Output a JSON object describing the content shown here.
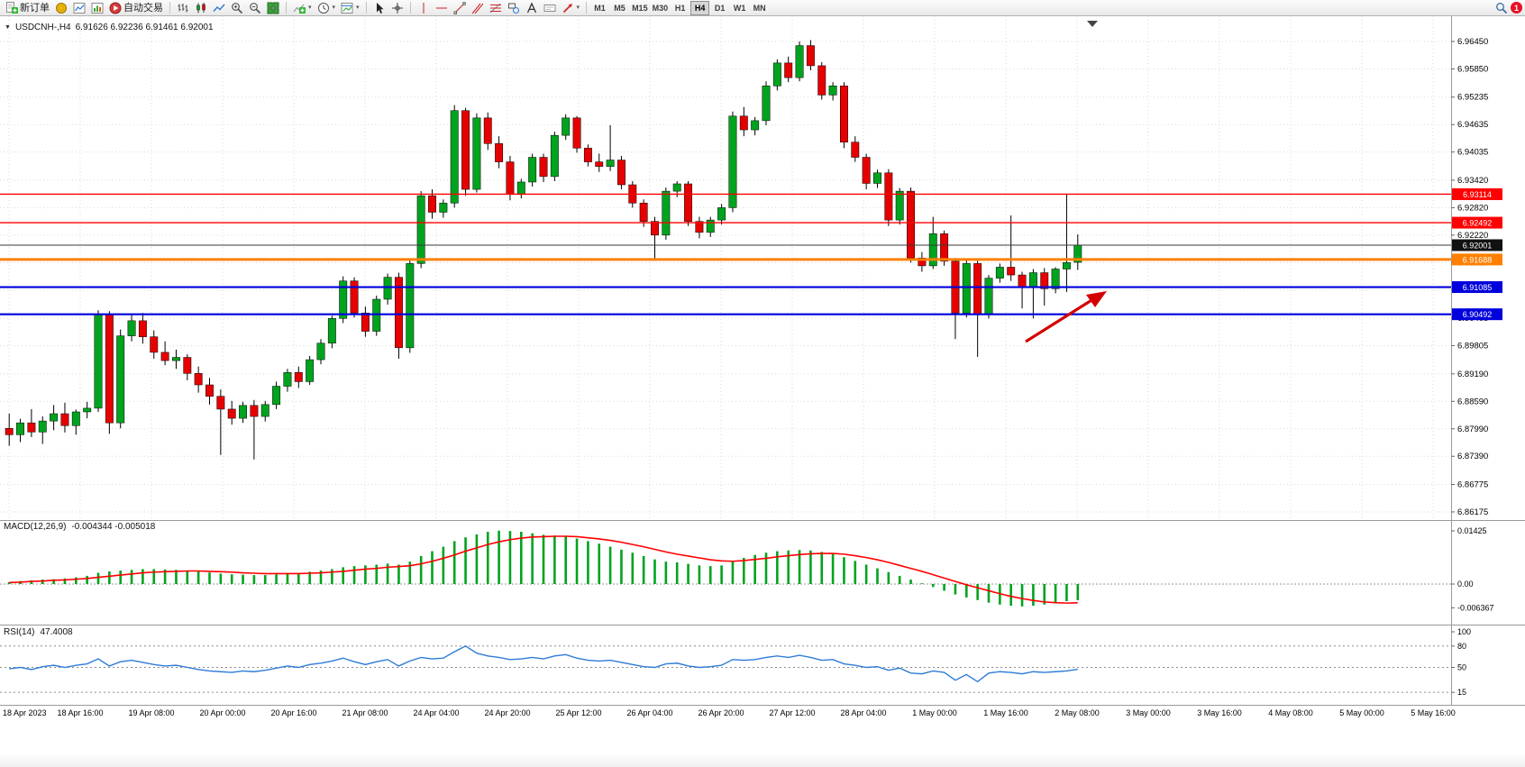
{
  "icons": {
    "caret_down": "▾",
    "chart_menu": "▼"
  },
  "toolbar": {
    "new_order_label": "新订单",
    "auto_trading_label": "自动交易",
    "timeframes": [
      "M1",
      "M5",
      "M15",
      "M30",
      "H1",
      "H4",
      "D1",
      "W1",
      "MN"
    ],
    "active_timeframe": "H4",
    "notification_count": "1"
  },
  "chart": {
    "symbol_period": "USDCNH-,H4",
    "ohlc": "6.91626 6.92236 6.91461 6.92001"
  },
  "chart_data": [
    {
      "type": "candlestick",
      "symbol": "USDCNH-",
      "period": "H4",
      "title": "USDCNH-,H4",
      "last_ohlc": {
        "open": 6.91626,
        "high": 6.92236,
        "low": 6.91461,
        "close": 6.92001
      },
      "ylim": [
        6.86175,
        6.9645
      ],
      "colors": {
        "up": "#00A31E",
        "down": "#E60000",
        "wick": "#000000"
      },
      "price_axis_ticks": [
        "6.96450",
        "6.95850",
        "6.95235",
        "6.94635",
        "6.94035",
        "6.93420",
        "6.92820",
        "6.92220",
        "6.91620",
        "6.91020",
        "6.90405",
        "6.89805",
        "6.89190",
        "6.88590",
        "6.87990",
        "6.87390",
        "6.86775",
        "6.86175"
      ],
      "hlines": [
        {
          "price": 6.93114,
          "label": "6.93114",
          "color": "#FF0000",
          "width": 1.4
        },
        {
          "price": 6.92492,
          "label": "6.92492",
          "color": "#FF0000",
          "width": 1.4
        },
        {
          "price": 6.92001,
          "label": "6.92001",
          "color": "#3A3A3A",
          "width": 1,
          "box": "#111111",
          "role": "bid"
        },
        {
          "price": 6.91688,
          "label": "6.91688",
          "color": "#FF8000",
          "width": 3
        },
        {
          "price": 6.91085,
          "label": "6.91085",
          "color": "#0000DD",
          "width": 2.2
        },
        {
          "price": 6.90492,
          "label": "6.90492",
          "color": "#0000DD",
          "width": 2.2
        }
      ],
      "arrow": {
        "color": "#D40000"
      },
      "time_axis_labels": [
        "18 Apr 2023",
        "18 Apr 16:00",
        "19 Apr 08:00",
        "20 Apr 00:00",
        "20 Apr 16:00",
        "21 Apr 08:00",
        "24 Apr 04:00",
        "24 Apr 20:00",
        "25 Apr 12:00",
        "26 Apr 04:00",
        "26 Apr 20:00",
        "27 Apr 12:00",
        "28 Apr 04:00",
        "1 May 00:00",
        "1 May 16:00",
        "2 May 08:00",
        "3 May 00:00",
        "3 May 16:00",
        "4 May 08:00",
        "5 May 00:00",
        "5 May 16:00"
      ],
      "candles": [
        [
          6.88,
          6.8832,
          6.8762,
          6.8786
        ],
        [
          6.8786,
          6.8821,
          6.877,
          6.8812
        ],
        [
          6.8812,
          6.8842,
          6.8781,
          6.8792
        ],
        [
          6.8792,
          6.8826,
          6.8766,
          6.8816
        ],
        [
          6.8816,
          6.8851,
          6.8796,
          6.8832
        ],
        [
          6.8832,
          6.8856,
          6.8791,
          6.8806
        ],
        [
          6.8806,
          6.8841,
          6.8786,
          6.8836
        ],
        [
          6.8836,
          6.8858,
          6.8822,
          6.8844
        ],
        [
          6.8844,
          6.9058,
          6.8836,
          6.9048
        ],
        [
          6.9048,
          6.9056,
          6.8788,
          6.8812
        ],
        [
          6.8812,
          6.9016,
          6.88,
          6.9002
        ],
        [
          6.9002,
          6.9048,
          6.899,
          6.9035
        ],
        [
          6.9035,
          6.9052,
          6.8985,
          6.9
        ],
        [
          6.9,
          6.9014,
          6.8952,
          6.8966
        ],
        [
          6.8966,
          6.899,
          6.8938,
          6.8948
        ],
        [
          6.8948,
          6.8972,
          6.893,
          6.8955
        ],
        [
          6.8955,
          6.8962,
          6.8905,
          6.892
        ],
        [
          6.892,
          6.8935,
          6.8878,
          6.8895
        ],
        [
          6.8895,
          6.891,
          6.8852,
          6.887
        ],
        [
          6.887,
          6.8885,
          6.8742,
          6.8842
        ],
        [
          6.8842,
          6.886,
          6.8808,
          6.8822
        ],
        [
          6.8822,
          6.8858,
          6.8812,
          6.885
        ],
        [
          6.885,
          6.8862,
          6.8732,
          6.8826
        ],
        [
          6.8826,
          6.886,
          6.8815,
          6.8852
        ],
        [
          6.8852,
          6.8902,
          6.8842,
          6.8892
        ],
        [
          6.8892,
          6.893,
          6.888,
          6.8922
        ],
        [
          6.8922,
          6.8935,
          6.8888,
          6.8902
        ],
        [
          6.8902,
          6.8958,
          6.8895,
          6.895
        ],
        [
          6.895,
          6.8995,
          6.894,
          6.8986
        ],
        [
          6.8986,
          6.9046,
          6.8975,
          6.904
        ],
        [
          6.904,
          6.9132,
          6.903,
          6.9122
        ],
        [
          6.9122,
          6.913,
          6.9042,
          6.9052
        ],
        [
          6.9052,
          6.9066,
          6.9,
          6.9012
        ],
        [
          6.9012,
          6.909,
          6.9002,
          6.9082
        ],
        [
          6.9082,
          6.9138,
          6.907,
          6.913
        ],
        [
          6.913,
          6.914,
          6.8952,
          6.8976
        ],
        [
          6.8976,
          6.9168,
          6.8965,
          6.916
        ],
        [
          6.916,
          6.9318,
          6.915,
          6.9308
        ],
        [
          6.9308,
          6.9322,
          6.9258,
          6.9272
        ],
        [
          6.9272,
          6.93,
          6.926,
          6.9292
        ],
        [
          6.9292,
          6.9506,
          6.9282,
          6.9494
        ],
        [
          6.9494,
          6.95,
          6.9308,
          6.9322
        ],
        [
          6.9322,
          6.9488,
          6.9315,
          6.9478
        ],
        [
          6.9478,
          6.949,
          6.9408,
          6.9422
        ],
        [
          6.9422,
          6.9438,
          6.9368,
          6.9382
        ],
        [
          6.9382,
          6.9395,
          6.9298,
          6.9312
        ],
        [
          6.9312,
          6.9345,
          6.9302,
          6.9338
        ],
        [
          6.9338,
          6.94,
          6.9328,
          6.9392
        ],
        [
          6.9392,
          6.94,
          6.9338,
          6.935
        ],
        [
          6.935,
          6.9448,
          6.934,
          6.944
        ],
        [
          6.944,
          6.9486,
          6.943,
          6.9478
        ],
        [
          6.9478,
          6.9482,
          6.9402,
          6.9412
        ],
        [
          6.9412,
          6.942,
          6.9372,
          6.9382
        ],
        [
          6.9382,
          6.94,
          6.936,
          6.9372
        ],
        [
          6.9372,
          6.9462,
          6.9362,
          6.9386
        ],
        [
          6.9386,
          6.9395,
          6.9322,
          6.9332
        ],
        [
          6.9332,
          6.934,
          6.9282,
          6.9292
        ],
        [
          6.9292,
          6.93,
          6.924,
          6.9252
        ],
        [
          6.9252,
          6.9262,
          6.9166,
          6.9222
        ],
        [
          6.9222,
          6.9326,
          6.9212,
          6.9318
        ],
        [
          6.9318,
          6.934,
          6.9305,
          6.9334
        ],
        [
          6.9334,
          6.934,
          6.9242,
          6.9252
        ],
        [
          6.9252,
          6.9262,
          6.9215,
          6.9228
        ],
        [
          6.9228,
          6.9262,
          6.9218,
          6.9255
        ],
        [
          6.9255,
          6.929,
          6.9245,
          6.9282
        ],
        [
          6.9282,
          6.9492,
          6.9272,
          6.9482
        ],
        [
          6.9482,
          6.9502,
          6.9438,
          6.9452
        ],
        [
          6.9452,
          6.948,
          6.944,
          6.9472
        ],
        [
          6.9472,
          6.9558,
          6.9462,
          6.9548
        ],
        [
          6.9548,
          6.9606,
          6.9538,
          6.9598
        ],
        [
          6.9598,
          6.9612,
          6.9556,
          6.9566
        ],
        [
          6.9566,
          6.9645,
          6.9558,
          6.9636
        ],
        [
          6.9636,
          6.9648,
          6.9582,
          6.9592
        ],
        [
          6.9592,
          6.96,
          6.9518,
          6.9528
        ],
        [
          6.9528,
          6.9556,
          6.9516,
          6.9548
        ],
        [
          6.9548,
          6.9556,
          6.9412,
          6.9425
        ],
        [
          6.9425,
          6.9438,
          6.9382,
          6.9392
        ],
        [
          6.9392,
          6.94,
          6.9322,
          6.9335
        ],
        [
          6.9335,
          6.9365,
          6.9325,
          6.9358
        ],
        [
          6.9358,
          6.9366,
          6.9242,
          6.9255
        ],
        [
          6.9255,
          6.9325,
          6.9245,
          6.9318
        ],
        [
          6.9318,
          6.9326,
          6.9162,
          6.9172
        ],
        [
          6.9172,
          6.9185,
          6.9142,
          6.9155
        ],
        [
          6.9155,
          6.9262,
          6.9148,
          6.9225
        ],
        [
          6.9225,
          6.9232,
          6.9155,
          6.9165
        ],
        [
          6.9165,
          6.9172,
          6.8995,
          6.9052
        ],
        [
          6.9052,
          6.9168,
          6.9042,
          6.916
        ],
        [
          6.916,
          6.9166,
          6.8956,
          6.9048
        ],
        [
          6.9048,
          6.9135,
          6.904,
          6.9128
        ],
        [
          6.9128,
          6.916,
          6.9118,
          6.9152
        ],
        [
          6.9152,
          6.9265,
          6.9122,
          6.9135
        ],
        [
          6.9135,
          6.9142,
          6.9062,
          6.9108
        ],
        [
          6.9108,
          6.9148,
          6.904,
          6.914
        ],
        [
          6.914,
          6.915,
          6.9068,
          6.9105
        ],
        [
          6.9105,
          6.9152,
          6.9095,
          6.9148
        ],
        [
          6.9148,
          6.9312,
          6.9098,
          6.9162
        ],
        [
          6.91626,
          6.92236,
          6.91461,
          6.92001
        ]
      ]
    },
    {
      "type": "macd",
      "title": "MACD(12,26,9)",
      "values_text": "-0.004344 -0.005018",
      "main_value": -0.004344,
      "signal_value": -0.005018,
      "colors": {
        "histogram": "#00A31E",
        "signal": "#FF0000"
      },
      "axis_ticks": [
        {
          "label": "0.01425",
          "value": 0.01425
        },
        {
          "label": "0.00",
          "value": 0
        },
        {
          "label": "-0.006367",
          "value": -0.006367
        }
      ],
      "histogram": [
        0.0005,
        0.0008,
        0.001,
        0.0012,
        0.0013,
        0.0015,
        0.0018,
        0.0022,
        0.003,
        0.0034,
        0.0036,
        0.0038,
        0.004,
        0.004,
        0.0039,
        0.0038,
        0.0036,
        0.0034,
        0.0031,
        0.0028,
        0.0026,
        0.0025,
        0.0024,
        0.0024,
        0.0026,
        0.0028,
        0.003,
        0.0033,
        0.0036,
        0.004,
        0.0045,
        0.0048,
        0.005,
        0.0052,
        0.0055,
        0.0052,
        0.006,
        0.0075,
        0.0088,
        0.01,
        0.0115,
        0.0125,
        0.0133,
        0.014,
        0.0143,
        0.0142,
        0.014,
        0.0136,
        0.0132,
        0.013,
        0.0128,
        0.0122,
        0.0115,
        0.0108,
        0.01,
        0.0092,
        0.0084,
        0.0075,
        0.0066,
        0.006,
        0.0058,
        0.0054,
        0.005,
        0.0048,
        0.005,
        0.006,
        0.007,
        0.0078,
        0.0084,
        0.0088,
        0.009,
        0.0091,
        0.009,
        0.0086,
        0.008,
        0.0072,
        0.0062,
        0.0052,
        0.0042,
        0.0032,
        0.0022,
        0.0012,
        0.0002,
        -0.0008,
        -0.0018,
        -0.0028,
        -0.0036,
        -0.0043,
        -0.005,
        -0.0055,
        -0.0058,
        -0.006,
        -0.0058,
        -0.0055,
        -0.005,
        -0.0046,
        -0.004344
      ],
      "signal": [
        0.0004,
        0.0005,
        0.0007,
        0.0008,
        0.001,
        0.0011,
        0.0013,
        0.0015,
        0.0018,
        0.0021,
        0.0024,
        0.0027,
        0.003,
        0.0032,
        0.0033,
        0.0034,
        0.0035,
        0.0035,
        0.0034,
        0.0033,
        0.0032,
        0.003,
        0.0029,
        0.0028,
        0.0028,
        0.0028,
        0.0028,
        0.0029,
        0.003,
        0.0032,
        0.0034,
        0.0037,
        0.004,
        0.0042,
        0.0045,
        0.0047,
        0.0049,
        0.0054,
        0.0061,
        0.0069,
        0.0078,
        0.0088,
        0.0097,
        0.0106,
        0.0113,
        0.0119,
        0.0123,
        0.0126,
        0.0127,
        0.0128,
        0.0128,
        0.0127,
        0.0124,
        0.0121,
        0.0117,
        0.0112,
        0.0106,
        0.01,
        0.0093,
        0.0086,
        0.008,
        0.0075,
        0.007,
        0.0065,
        0.0062,
        0.0061,
        0.0063,
        0.0066,
        0.0069,
        0.0073,
        0.0076,
        0.0079,
        0.0081,
        0.0082,
        0.0082,
        0.008,
        0.0076,
        0.0071,
        0.0065,
        0.0058,
        0.005,
        0.0042,
        0.0034,
        0.0025,
        0.0016,
        0.0007,
        -0.0002,
        -0.001,
        -0.0018,
        -0.0026,
        -0.0033,
        -0.0039,
        -0.0044,
        -0.0048,
        -0.005,
        -0.0051,
        -0.005018
      ]
    },
    {
      "type": "rsi",
      "title": "RSI(14)",
      "value_text": "47.4008",
      "value": 47.4008,
      "color": "#2E7CD6",
      "levels": [
        80,
        50,
        15
      ],
      "axis_ticks": [
        {
          "label": "100",
          "value": 100
        },
        {
          "label": "80",
          "value": 80
        },
        {
          "label": "50",
          "value": 50
        },
        {
          "label": "15",
          "value": 15
        }
      ],
      "values": [
        48,
        50,
        47,
        51,
        53,
        50,
        53,
        55,
        62,
        52,
        58,
        60,
        57,
        54,
        52,
        53,
        50,
        47,
        45,
        44,
        43,
        45,
        44,
        46,
        49,
        52,
        50,
        54,
        56,
        59,
        63,
        58,
        54,
        58,
        61,
        52,
        59,
        64,
        62,
        63,
        72,
        80,
        70,
        66,
        64,
        61,
        62,
        64,
        62,
        66,
        68,
        63,
        60,
        59,
        60,
        57,
        54,
        51,
        50,
        55,
        56,
        52,
        50,
        51,
        53,
        61,
        60,
        61,
        64,
        66,
        64,
        67,
        64,
        60,
        61,
        55,
        53,
        50,
        51,
        46,
        49,
        42,
        41,
        45,
        43,
        32,
        40,
        30,
        42,
        44,
        43,
        41,
        44,
        43,
        44,
        45,
        47.4
      ]
    }
  ]
}
